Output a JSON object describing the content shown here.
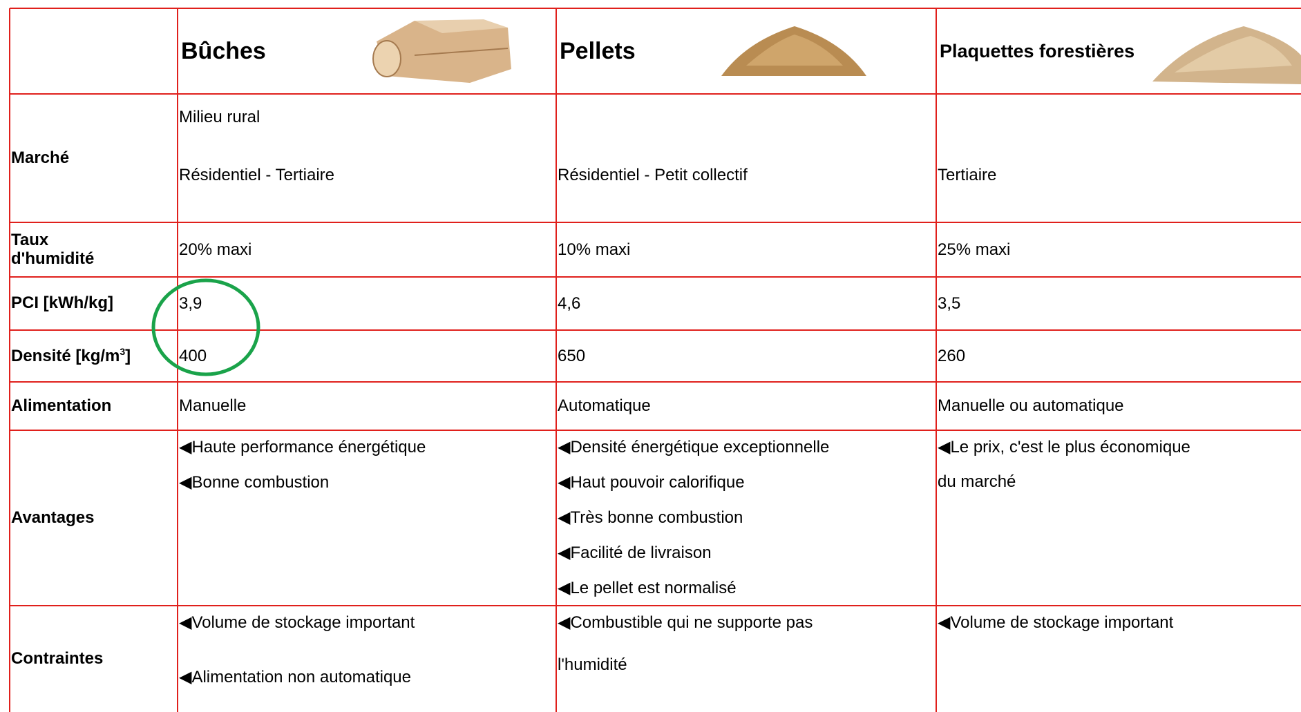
{
  "table": {
    "header": [
      "Bûches",
      "Pellets",
      "Plaquettes forestières"
    ],
    "rows": [
      {
        "label": "Marché",
        "cells": [
          [
            "Milieu rural",
            "Résidentiel - Tertiaire"
          ],
          [
            "Résidentiel - Petit collectif"
          ],
          [
            "Tertiaire"
          ]
        ]
      },
      {
        "label": "Taux d'humidité",
        "cells": [
          [
            "20% maxi"
          ],
          [
            "10% maxi"
          ],
          [
            "25% maxi"
          ]
        ]
      },
      {
        "label": "PCI [kWh/kg]",
        "cells": [
          [
            "3,9"
          ],
          [
            "4,6"
          ],
          [
            "3,5"
          ]
        ]
      },
      {
        "label": "Densité [kg/m",
        "label_sup": "3",
        "label_end": "]",
        "cells": [
          [
            "400"
          ],
          [
            "650"
          ],
          [
            "260"
          ]
        ]
      },
      {
        "label": "Alimentation",
        "cells": [
          [
            "Manuelle"
          ],
          [
            "Automatique"
          ],
          [
            "Manuelle ou automatique"
          ]
        ]
      },
      {
        "label": "Avantages",
        "cells": [
          [
            "◀Haute performance énergétique",
            "◀Bonne combustion"
          ],
          [
            "◀Densité énergétique exceptionnelle",
            "◀Haut pouvoir calorifique",
            "◀Très bonne combustion",
            "◀Facilité de livraison",
            "◀Le pellet est normalisé"
          ],
          [
            "◀Le prix, c'est le plus économique",
            "du marché"
          ]
        ]
      },
      {
        "label": "Contraintes",
        "cells": [
          [
            "◀Volume de stockage important",
            "◀Alimentation non automatique"
          ],
          [
            "◀Combustible qui ne supporte pas",
            "l'humidité"
          ],
          [
            "◀Volume de stockage important"
          ]
        ]
      }
    ]
  }
}
